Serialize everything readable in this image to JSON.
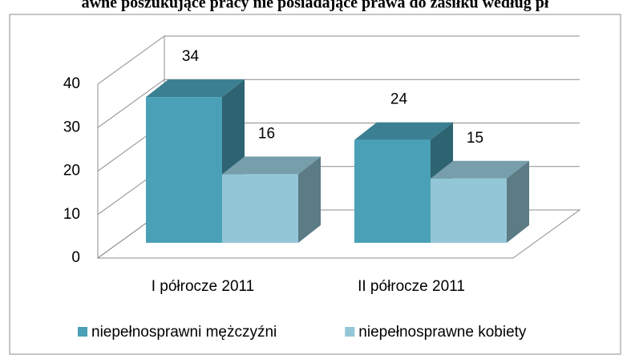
{
  "chart_data": {
    "type": "bar3d",
    "title": "awne poszukujące pracy nie posiadające prawa do zasiłku według pł",
    "categories": [
      "I półrocze 2011",
      "II półrocze 2011"
    ],
    "series": [
      {
        "name": "niepełnosprawni mężczyźni",
        "color": "#4aa0b6",
        "values": [
          34,
          24
        ]
      },
      {
        "name": "niepełnosprawne kobiety",
        "color": "#93c6d6",
        "values": [
          16,
          15
        ]
      }
    ],
    "ylim": [
      0,
      40
    ],
    "yticks": [
      0,
      10,
      20,
      30,
      40
    ],
    "grid": true,
    "legend": "bottom"
  }
}
